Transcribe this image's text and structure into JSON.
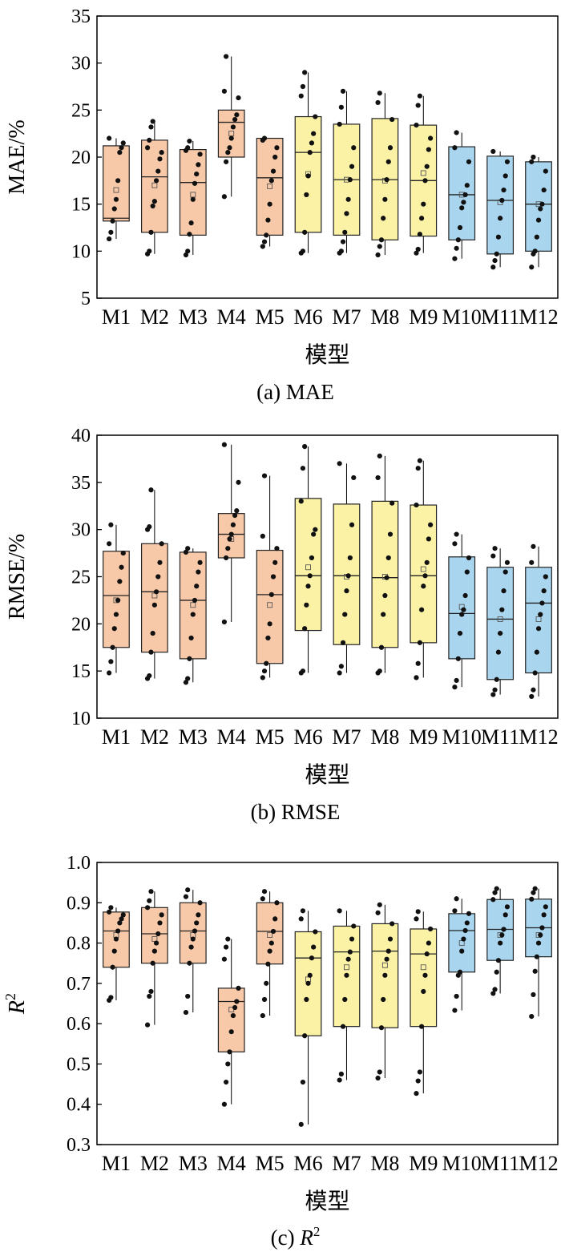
{
  "chart_data": [
    {
      "type": "box",
      "caption": "(a) MAE",
      "ylabel": "MAE/%",
      "xlabel": "模型",
      "ylim": [
        5,
        35
      ],
      "yticks": [
        5,
        10,
        15,
        20,
        25,
        30,
        35
      ],
      "ytick_labels": [
        "5",
        "10",
        "15",
        "20",
        "25",
        "30",
        "35"
      ],
      "categories": [
        "M1",
        "M2",
        "M3",
        "M4",
        "M5",
        "M6",
        "M7",
        "M8",
        "M9",
        "M10",
        "M11",
        "M12"
      ],
      "box_colors": [
        "#f8c9a8",
        "#f8c9a8",
        "#f8c9a8",
        "#f8c9a8",
        "#f8c9a8",
        "#fbf2a6",
        "#fbf2a6",
        "#fbf2a6",
        "#fbf2a6",
        "#a9d6ee",
        "#a9d6ee",
        "#a9d6ee"
      ],
      "boxes": [
        {
          "q1": 13.2,
          "median": 13.5,
          "q3": 21.2,
          "mean": 16.5
        },
        {
          "q1": 12.0,
          "median": 17.9,
          "q3": 21.8,
          "mean": 17.0
        },
        {
          "q1": 11.7,
          "median": 17.3,
          "q3": 20.8,
          "mean": 16.0
        },
        {
          "q1": 20.0,
          "median": 23.7,
          "q3": 25.0,
          "mean": 22.5
        },
        {
          "q1": 11.7,
          "median": 17.8,
          "q3": 22.0,
          "mean": 16.9
        },
        {
          "q1": 12.0,
          "median": 20.5,
          "q3": 24.3,
          "mean": 18.2
        },
        {
          "q1": 11.7,
          "median": 17.6,
          "q3": 23.5,
          "mean": 17.6
        },
        {
          "q1": 11.2,
          "median": 17.6,
          "q3": 24.1,
          "mean": 17.5
        },
        {
          "q1": 11.6,
          "median": 17.5,
          "q3": 23.4,
          "mean": 18.3
        },
        {
          "q1": 11.2,
          "median": 16.0,
          "q3": 21.1,
          "mean": 16.0
        },
        {
          "q1": 9.7,
          "median": 15.4,
          "q3": 20.1,
          "mean": 15.2
        },
        {
          "q1": 10.0,
          "median": 15.0,
          "q3": 19.5,
          "mean": 15.0
        }
      ],
      "points": [
        [
          11.3,
          12.0,
          13.2,
          14.5,
          15.5,
          17.5,
          20.5,
          21.0,
          21.5,
          22.0
        ],
        [
          9.7,
          10.0,
          12.0,
          14.8,
          15.3,
          17.5,
          18.5,
          19.8,
          20.5,
          21.0,
          21.8,
          23.2,
          23.8
        ],
        [
          9.6,
          10.0,
          11.8,
          13.0,
          15.5,
          17.2,
          18.2,
          19.2,
          20.3,
          20.7,
          21.0,
          21.7
        ],
        [
          15.8,
          19.5,
          20.5,
          21.0,
          22.0,
          23.2,
          24.0,
          24.5,
          26.3,
          27.0,
          30.7
        ],
        [
          10.5,
          11.0,
          11.7,
          13.3,
          15.0,
          17.5,
          18.5,
          20.0,
          21.0,
          21.8,
          22.0
        ],
        [
          9.8,
          10.0,
          12.0,
          16.0,
          18.0,
          20.5,
          21.5,
          22.5,
          24.3,
          26.5,
          27.5,
          29.0
        ],
        [
          9.8,
          10.0,
          11.0,
          12.0,
          14.0,
          15.5,
          17.6,
          19.0,
          21.0,
          23.5,
          25.3,
          27.0
        ],
        [
          9.6,
          10.5,
          11.2,
          13.5,
          15.5,
          17.6,
          19.5,
          21.0,
          24.0,
          25.8,
          26.8
        ],
        [
          9.8,
          10.2,
          11.8,
          13.5,
          15.0,
          17.5,
          19.0,
          20.8,
          22.0,
          23.4,
          25.5,
          26.5
        ],
        [
          9.2,
          10.3,
          11.2,
          12.5,
          14.6,
          15.2,
          16.0,
          17.0,
          19.5,
          21.0,
          22.6
        ],
        [
          8.3,
          9.0,
          9.7,
          11.5,
          13.5,
          15.4,
          16.5,
          18.0,
          19.5,
          20.6
        ],
        [
          8.3,
          9.7,
          10.0,
          11.5,
          13.3,
          14.5,
          15.0,
          16.5,
          18.5,
          19.5,
          20.0
        ]
      ]
    },
    {
      "type": "box",
      "caption": "(b) RMSE",
      "ylabel": "RMSE/%",
      "xlabel": "模型",
      "ylim": [
        10,
        40
      ],
      "yticks": [
        10,
        15,
        20,
        25,
        30,
        35,
        40
      ],
      "ytick_labels": [
        "10",
        "15",
        "20",
        "25",
        "30",
        "35",
        "40"
      ],
      "categories": [
        "M1",
        "M2",
        "M3",
        "M4",
        "M5",
        "M6",
        "M7",
        "M8",
        "M9",
        "M10",
        "M11",
        "M12"
      ],
      "box_colors": [
        "#f8c9a8",
        "#f8c9a8",
        "#f8c9a8",
        "#f8c9a8",
        "#f8c9a8",
        "#fbf2a6",
        "#fbf2a6",
        "#fbf2a6",
        "#fbf2a6",
        "#a9d6ee",
        "#a9d6ee",
        "#a9d6ee"
      ],
      "boxes": [
        {
          "q1": 17.5,
          "median": 23.0,
          "q3": 27.7,
          "mean": 22.5
        },
        {
          "q1": 17.0,
          "median": 23.4,
          "q3": 28.5,
          "mean": 23.0
        },
        {
          "q1": 16.3,
          "median": 22.5,
          "q3": 27.6,
          "mean": 22.0
        },
        {
          "q1": 27.0,
          "median": 29.5,
          "q3": 31.7,
          "mean": 29.0
        },
        {
          "q1": 15.8,
          "median": 23.1,
          "q3": 27.8,
          "mean": 22.0
        },
        {
          "q1": 19.3,
          "median": 25.1,
          "q3": 33.3,
          "mean": 26.0
        },
        {
          "q1": 17.8,
          "median": 25.1,
          "q3": 32.7,
          "mean": 25.0
        },
        {
          "q1": 17.5,
          "median": 24.9,
          "q3": 33.0,
          "mean": 25.0
        },
        {
          "q1": 18.0,
          "median": 25.1,
          "q3": 32.6,
          "mean": 25.8
        },
        {
          "q1": 16.3,
          "median": 21.1,
          "q3": 27.1,
          "mean": 21.8
        },
        {
          "q1": 14.1,
          "median": 20.5,
          "q3": 26.0,
          "mean": 20.5
        },
        {
          "q1": 14.8,
          "median": 22.2,
          "q3": 26.0,
          "mean": 20.5
        }
      ],
      "points": [
        [
          14.8,
          16.0,
          17.5,
          19.5,
          21.0,
          22.5,
          24.5,
          26.0,
          27.5,
          28.5,
          30.5
        ],
        [
          14.2,
          14.5,
          17.0,
          19.0,
          22.0,
          23.4,
          25.0,
          26.5,
          28.5,
          30.0,
          30.3,
          34.2
        ],
        [
          13.8,
          14.2,
          16.3,
          18.5,
          21.0,
          22.5,
          24.0,
          25.5,
          26.5,
          27.6,
          28.0
        ],
        [
          20.2,
          27.0,
          28.0,
          29.0,
          29.5,
          30.5,
          31.5,
          32.0,
          35.0,
          39.0
        ],
        [
          14.3,
          15.0,
          15.8,
          18.5,
          20.0,
          23.1,
          25.0,
          26.5,
          28.0,
          29.3,
          35.7
        ],
        [
          14.8,
          15.0,
          19.5,
          22.0,
          24.0,
          25.1,
          27.0,
          29.5,
          30.0,
          33.0,
          36.5,
          38.8
        ],
        [
          14.8,
          15.5,
          18.0,
          21.0,
          23.5,
          25.1,
          27.0,
          30.5,
          35.5,
          37.0
        ],
        [
          14.8,
          15.0,
          17.5,
          21.0,
          23.0,
          24.9,
          27.0,
          29.5,
          32.8,
          35.5,
          37.8
        ],
        [
          14.3,
          15.8,
          18.0,
          21.5,
          24.0,
          25.1,
          26.5,
          29.0,
          30.5,
          32.6,
          36.5,
          37.3
        ],
        [
          13.3,
          14.0,
          16.3,
          19.0,
          21.0,
          21.5,
          23.0,
          25.5,
          27.0,
          28.5,
          29.5
        ],
        [
          12.5,
          13.0,
          14.1,
          17.0,
          19.0,
          21.5,
          23.5,
          25.5,
          26.5,
          27.2,
          28.0
        ],
        [
          12.3,
          13.0,
          14.8,
          17.0,
          19.5,
          21.0,
          22.2,
          23.5,
          25.0,
          26.5,
          28.2
        ]
      ]
    },
    {
      "type": "box",
      "caption_prefix": "(c) ",
      "caption_symbol": "R",
      "caption_sup": "2",
      "ylabel_symbol": "R",
      "ylabel_sup": "2",
      "xlabel": "模型",
      "ylim": [
        0.3,
        1.0
      ],
      "yticks": [
        0.3,
        0.4,
        0.5,
        0.6,
        0.7,
        0.8,
        0.9,
        1.0
      ],
      "ytick_labels": [
        "0.3",
        "0.4",
        "0.5",
        "0.6",
        "0.7",
        "0.8",
        "0.9",
        "1.0"
      ],
      "categories": [
        "M1",
        "M2",
        "M3",
        "M4",
        "M5",
        "M6",
        "M7",
        "M8",
        "M9",
        "M10",
        "M11",
        "M12"
      ],
      "box_colors": [
        "#f8c9a8",
        "#f8c9a8",
        "#f8c9a8",
        "#f8c9a8",
        "#f8c9a8",
        "#fbf2a6",
        "#fbf2a6",
        "#fbf2a6",
        "#fbf2a6",
        "#a9d6ee",
        "#a9d6ee",
        "#a9d6ee"
      ],
      "boxes": [
        {
          "q1": 0.74,
          "median": 0.83,
          "q3": 0.877,
          "mean": 0.82
        },
        {
          "q1": 0.75,
          "median": 0.823,
          "q3": 0.888,
          "mean": 0.81
        },
        {
          "q1": 0.75,
          "median": 0.83,
          "q3": 0.9,
          "mean": 0.82
        },
        {
          "q1": 0.53,
          "median": 0.655,
          "q3": 0.688,
          "mean": 0.635
        },
        {
          "q1": 0.748,
          "median": 0.829,
          "q3": 0.9,
          "mean": 0.82
        },
        {
          "q1": 0.57,
          "median": 0.763,
          "q3": 0.828,
          "mean": 0.71
        },
        {
          "q1": 0.593,
          "median": 0.778,
          "q3": 0.842,
          "mean": 0.74
        },
        {
          "q1": 0.59,
          "median": 0.78,
          "q3": 0.848,
          "mean": 0.745
        },
        {
          "q1": 0.593,
          "median": 0.773,
          "q3": 0.835,
          "mean": 0.74
        },
        {
          "q1": 0.728,
          "median": 0.831,
          "q3": 0.873,
          "mean": 0.8
        },
        {
          "q1": 0.757,
          "median": 0.834,
          "q3": 0.908,
          "mean": 0.82
        },
        {
          "q1": 0.766,
          "median": 0.838,
          "q3": 0.909,
          "mean": 0.82
        }
      ],
      "points": [
        [
          0.658,
          0.665,
          0.74,
          0.78,
          0.81,
          0.83,
          0.85,
          0.86,
          0.87,
          0.877,
          0.888
        ],
        [
          0.597,
          0.668,
          0.68,
          0.75,
          0.78,
          0.8,
          0.823,
          0.85,
          0.87,
          0.888,
          0.905,
          0.928
        ],
        [
          0.628,
          0.668,
          0.75,
          0.79,
          0.81,
          0.83,
          0.85,
          0.87,
          0.9,
          0.915,
          0.932
        ],
        [
          0.4,
          0.455,
          0.5,
          0.53,
          0.58,
          0.62,
          0.64,
          0.655,
          0.688,
          0.76,
          0.79,
          0.81
        ],
        [
          0.62,
          0.66,
          0.7,
          0.748,
          0.78,
          0.8,
          0.829,
          0.86,
          0.9,
          0.91,
          0.928
        ],
        [
          0.35,
          0.455,
          0.57,
          0.66,
          0.7,
          0.72,
          0.763,
          0.79,
          0.828,
          0.86,
          0.88
        ],
        [
          0.46,
          0.475,
          0.593,
          0.66,
          0.72,
          0.76,
          0.778,
          0.81,
          0.842,
          0.88
        ],
        [
          0.465,
          0.48,
          0.59,
          0.66,
          0.72,
          0.76,
          0.78,
          0.81,
          0.848,
          0.875,
          0.895
        ],
        [
          0.427,
          0.458,
          0.48,
          0.593,
          0.68,
          0.72,
          0.773,
          0.8,
          0.835,
          0.86,
          0.878
        ],
        [
          0.633,
          0.668,
          0.72,
          0.728,
          0.78,
          0.81,
          0.831,
          0.85,
          0.873,
          0.88,
          0.91
        ],
        [
          0.675,
          0.685,
          0.728,
          0.757,
          0.8,
          0.82,
          0.834,
          0.87,
          0.89,
          0.908,
          0.925,
          0.935
        ],
        [
          0.618,
          0.672,
          0.73,
          0.766,
          0.8,
          0.82,
          0.838,
          0.87,
          0.89,
          0.909,
          0.925,
          0.935
        ]
      ]
    }
  ]
}
